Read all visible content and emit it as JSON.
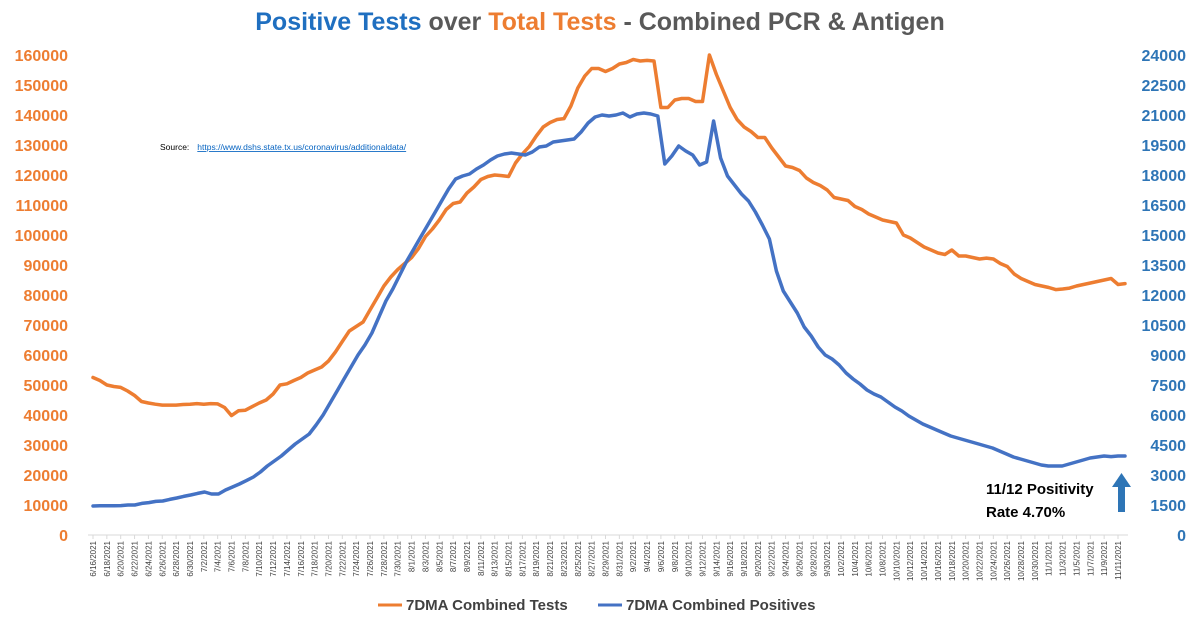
{
  "title": {
    "segments": [
      {
        "text": "Positive Tests",
        "color": "#1f6fc0"
      },
      {
        "text": " over ",
        "color": "#595959"
      },
      {
        "text": "Total Tests",
        "color": "#ed7d31"
      },
      {
        "text": " - Combined PCR & Antigen",
        "color": "#595959"
      }
    ]
  },
  "source": {
    "label": "Source:",
    "url": "https://www.dshs.state.tx.us/coronavirus/additionaldata/"
  },
  "annotation": {
    "line1": "11/12 Positivity",
    "line2": "Rate 4.70%"
  },
  "colors": {
    "tests": "#ed7d31",
    "positives": "#4472c4",
    "left_axis": "#ed7d31",
    "right_axis": "#2e75b6",
    "arrow": "#2e75b6"
  },
  "chart_data": {
    "type": "line",
    "title": "Positive Tests over Total Tests - Combined PCR & Antigen",
    "x_start": "6/16/2021",
    "x_end": "11/12/2021",
    "x_tick_labels": [
      "6/16/2021",
      "6/18/2021",
      "6/20/2021",
      "6/22/2021",
      "6/24/2021",
      "6/26/2021",
      "6/28/2021",
      "6/30/2021",
      "7/2/2021",
      "7/4/2021",
      "7/6/2021",
      "7/8/2021",
      "7/10/2021",
      "7/12/2021",
      "7/14/2021",
      "7/16/2021",
      "7/18/2021",
      "7/20/2021",
      "7/22/2021",
      "7/24/2021",
      "7/26/2021",
      "7/28/2021",
      "7/30/2021",
      "8/1/2021",
      "8/3/2021",
      "8/5/2021",
      "8/7/2021",
      "8/9/2021",
      "8/11/2021",
      "8/13/2021",
      "8/15/2021",
      "8/17/2021",
      "8/19/2021",
      "8/21/2021",
      "8/23/2021",
      "8/25/2021",
      "8/27/2021",
      "8/29/2021",
      "8/31/2021",
      "9/2/2021",
      "9/4/2021",
      "9/6/2021",
      "9/8/2021",
      "9/10/2021",
      "9/12/2021",
      "9/14/2021",
      "9/16/2021",
      "9/18/2021",
      "9/20/2021",
      "9/22/2021",
      "9/24/2021",
      "9/26/2021",
      "9/28/2021",
      "9/30/2021",
      "10/2/2021",
      "10/4/2021",
      "10/6/2021",
      "10/8/2021",
      "10/10/2021",
      "10/12/2021",
      "10/14/2021",
      "10/16/2021",
      "10/18/2021",
      "10/20/2021",
      "10/22/2021",
      "10/24/2021",
      "10/26/2021",
      "10/28/2021",
      "10/30/2021",
      "11/1/2021",
      "11/3/2021",
      "11/5/2021",
      "11/7/2021",
      "11/9/2021",
      "11/11/2021"
    ],
    "y_left": {
      "min": 0,
      "max": 160000,
      "step": 10000,
      "ticks": [
        "0",
        "10000",
        "20000",
        "30000",
        "40000",
        "50000",
        "60000",
        "70000",
        "80000",
        "90000",
        "100000",
        "110000",
        "120000",
        "130000",
        "140000",
        "150000",
        "160000"
      ]
    },
    "y_right": {
      "min": 0,
      "max": 24000,
      "step": 1500,
      "ticks": [
        "0",
        "1500",
        "3000",
        "4500",
        "6000",
        "7500",
        "9000",
        "10500",
        "12000",
        "13500",
        "15000",
        "16500",
        "18000",
        "19500",
        "21000",
        "22500",
        "24000"
      ]
    },
    "series": [
      {
        "name": "7DMA Combined Tests",
        "axis": "left",
        "values": [
          52500,
          51500,
          50000,
          49500,
          49200,
          48000,
          46500,
          44500,
          44000,
          43600,
          43300,
          43300,
          43300,
          43500,
          43600,
          43800,
          43600,
          43800,
          43700,
          42500,
          39800,
          41400,
          41600,
          42800,
          44000,
          45000,
          47000,
          50000,
          50400,
          51500,
          52500,
          54000,
          55000,
          56000,
          58000,
          61000,
          64500,
          68000,
          69500,
          71000,
          75000,
          79000,
          83000,
          86000,
          88500,
          90500,
          92500,
          95500,
          99500,
          102000,
          105000,
          108500,
          110500,
          111000,
          114000,
          116000,
          118500,
          119500,
          120000,
          119800,
          119500,
          124000,
          127000,
          129500,
          133000,
          136000,
          137500,
          138500,
          138800,
          143000,
          149000,
          153000,
          155500,
          155500,
          154500,
          155500,
          157000,
          157500,
          158500,
          158000,
          158200,
          158000,
          142500,
          142500,
          145000,
          145500,
          145500,
          144500,
          144500,
          160000,
          153500,
          148000,
          142500,
          138500,
          136000,
          134500,
          132500,
          132500,
          129000,
          126000,
          123000,
          122500,
          121500,
          119000,
          117500,
          116500,
          115000,
          112500,
          112000,
          111500,
          109500,
          108500,
          107000,
          106000,
          105000,
          104500,
          104000,
          100000,
          99000,
          97500,
          96000,
          95000,
          94000,
          93500,
          95000,
          93000,
          93000,
          92500,
          92000,
          92300,
          92000,
          90500,
          89500,
          87000,
          85500,
          84500,
          83500,
          83000,
          82500,
          81800,
          82000,
          82300,
          83000,
          83500,
          84000,
          84500,
          85000,
          85500,
          83500,
          83800
        ]
      },
      {
        "name": "7DMA Combined Positives",
        "axis": "right",
        "values": [
          1450,
          1460,
          1460,
          1460,
          1470,
          1500,
          1500,
          1580,
          1620,
          1680,
          1700,
          1780,
          1850,
          1930,
          2000,
          2080,
          2150,
          2050,
          2050,
          2250,
          2400,
          2550,
          2720,
          2900,
          3150,
          3450,
          3700,
          3950,
          4250,
          4550,
          4800,
          5050,
          5500,
          6000,
          6600,
          7200,
          7800,
          8400,
          9000,
          9500,
          10100,
          10900,
          11700,
          12300,
          13000,
          13700,
          14300,
          14900,
          15500,
          16100,
          16700,
          17300,
          17800,
          17950,
          18050,
          18300,
          18500,
          18750,
          18950,
          19050,
          19100,
          19050,
          19000,
          19150,
          19400,
          19450,
          19650,
          19700,
          19750,
          19800,
          20150,
          20600,
          20900,
          21000,
          20950,
          21000,
          21100,
          20900,
          21050,
          21100,
          21050,
          20950,
          18550,
          18950,
          19450,
          19200,
          19000,
          18500,
          18650,
          20700,
          18850,
          17950,
          17500,
          17050,
          16700,
          16150,
          15500,
          14800,
          13200,
          12200,
          11650,
          11100,
          10400,
          9950,
          9400,
          9000,
          8800,
          8500,
          8100,
          7800,
          7550,
          7250,
          7050,
          6900,
          6650,
          6400,
          6200,
          5950,
          5750,
          5550,
          5400,
          5250,
          5100,
          4950,
          4850,
          4750,
          4650,
          4550,
          4450,
          4350,
          4200,
          4050,
          3900,
          3800,
          3700,
          3600,
          3500,
          3450,
          3450,
          3450,
          3550,
          3650,
          3750,
          3850,
          3900,
          3950,
          3920,
          3950,
          3950
        ]
      }
    ],
    "legend": [
      "7DMA Combined Tests",
      "7DMA Combined Positives"
    ],
    "legend_position": "bottom"
  }
}
